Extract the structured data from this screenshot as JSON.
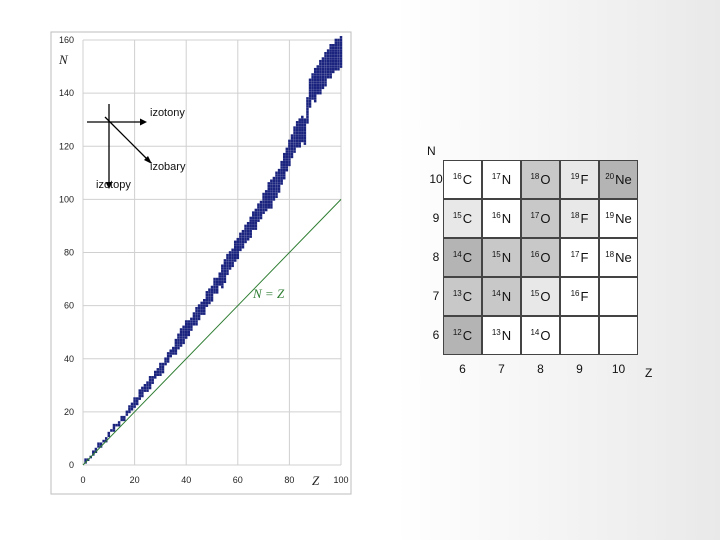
{
  "chart_data": {
    "type": "scatter",
    "xlabel": "Z",
    "ylabel": "N",
    "xlim": [
      0,
      100
    ],
    "ylim": [
      0,
      160
    ],
    "x_ticks": [
      "0",
      "20",
      "40",
      "60",
      "80",
      "100"
    ],
    "y_ticks": [
      "0",
      "20",
      "40",
      "60",
      "80",
      "100",
      "120",
      "140",
      "160"
    ],
    "grid": true,
    "line": {
      "label": "N = Z",
      "x": [
        0,
        100
      ],
      "y": [
        0,
        100
      ],
      "color": "#2e7d32"
    },
    "annotations": {
      "isotones": "izotony",
      "isobars": "izobary",
      "isotopes": "izotopy"
    },
    "point_color": "#1a237e",
    "stability_band": [
      [
        1,
        0.5
      ],
      [
        5,
        5.5
      ],
      [
        10,
        11.5
      ],
      [
        15,
        17
      ],
      [
        20,
        23
      ],
      [
        25,
        30
      ],
      [
        30,
        36
      ],
      [
        35,
        43
      ],
      [
        40,
        51
      ],
      [
        45,
        57
      ],
      [
        50,
        65
      ],
      [
        55,
        73
      ],
      [
        60,
        82
      ],
      [
        65,
        90
      ],
      [
        70,
        98
      ],
      [
        75,
        105
      ],
      [
        80,
        117
      ],
      [
        83,
        125
      ],
      [
        86,
        126
      ],
      [
        88,
        140
      ],
      [
        92,
        146
      ],
      [
        96,
        152
      ],
      [
        100,
        156
      ]
    ]
  },
  "nuclide_grid": {
    "axis_n": "N",
    "axis_z": "Z",
    "rows": [
      "10",
      "9",
      "8",
      "7",
      "6"
    ],
    "cols": [
      "6",
      "7",
      "8",
      "9",
      "10"
    ],
    "cells": [
      [
        {
          "m": "16",
          "e": "C",
          "c": "#ffffff"
        },
        {
          "m": "17",
          "e": "N",
          "c": "#ffffff"
        },
        {
          "m": "18",
          "e": "O",
          "c": "#c8c8c8"
        },
        {
          "m": "19",
          "e": "F",
          "c": "#e8e8e8"
        },
        {
          "m": "20",
          "e": "Ne",
          "c": "#b4b4b4"
        }
      ],
      [
        {
          "m": "15",
          "e": "C",
          "c": "#e8e8e8"
        },
        {
          "m": "16",
          "e": "N",
          "c": "#ffffff"
        },
        {
          "m": "17",
          "e": "O",
          "c": "#c8c8c8"
        },
        {
          "m": "18",
          "e": "F",
          "c": "#e8e8e8"
        },
        {
          "m": "19",
          "e": "Ne",
          "c": "#ffffff"
        }
      ],
      [
        {
          "m": "14",
          "e": "C",
          "c": "#b4b4b4"
        },
        {
          "m": "15",
          "e": "N",
          "c": "#c8c8c8"
        },
        {
          "m": "16",
          "e": "O",
          "c": "#c8c8c8"
        },
        {
          "m": "17",
          "e": "F",
          "c": "#ffffff"
        },
        {
          "m": "18",
          "e": "Ne",
          "c": "#ffffff"
        }
      ],
      [
        {
          "m": "13",
          "e": "C",
          "c": "#c8c8c8"
        },
        {
          "m": "14",
          "e": "N",
          "c": "#c8c8c8"
        },
        {
          "m": "15",
          "e": "O",
          "c": "#e8e8e8"
        },
        {
          "m": "16",
          "e": "F",
          "c": "#ffffff"
        },
        {
          "m": "",
          "e": "",
          "c": "#ffffff"
        }
      ],
      [
        {
          "m": "12",
          "e": "C",
          "c": "#b4b4b4"
        },
        {
          "m": "13",
          "e": "N",
          "c": "#ffffff"
        },
        {
          "m": "14",
          "e": "O",
          "c": "#ffffff"
        },
        {
          "m": "",
          "e": "",
          "c": "#ffffff"
        },
        {
          "m": "",
          "e": "",
          "c": "#ffffff"
        }
      ]
    ]
  }
}
